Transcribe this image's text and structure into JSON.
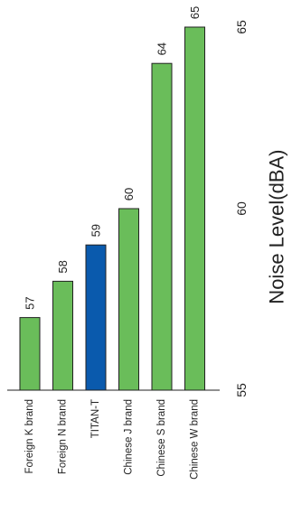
{
  "chart_data": {
    "type": "bar",
    "orientation": "vertical",
    "categories": [
      "Foreign K brand",
      "Foreign N brand",
      "TITAN-T",
      "Chinese J brand",
      "Chinese S brand",
      "Chinese W brand"
    ],
    "values": [
      57,
      58,
      59,
      60,
      64,
      65
    ],
    "value_labels": [
      "57",
      "58",
      "59",
      "60",
      "64",
      "65"
    ],
    "ylabel": "Noise Level(dBA)",
    "ylim": [
      55,
      65
    ],
    "yticks": [
      55,
      60,
      65
    ],
    "ytick_labels": [
      "55",
      "60",
      "65"
    ],
    "grid": false,
    "legend": "none",
    "colors": {
      "default_bar": "#6abd5a",
      "highlight_bar": "#0a5aad",
      "bar_stroke": "#222222",
      "axis": "#222222"
    },
    "highlight_category": "TITAN-T"
  }
}
